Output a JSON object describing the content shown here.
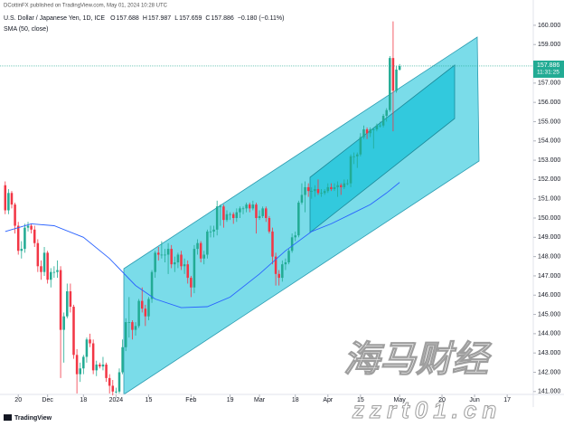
{
  "header": {
    "publisher": "DCottinFX published on TradingView.com, May 01, 2024 10:28 UTC",
    "logo": "TradingView"
  },
  "watermark": {
    "title": "海马财经",
    "url": "zzrt01.cn"
  },
  "chart_data": {
    "type": "candlestick",
    "title": "U.S. Dollar / Japanese Yen, 1D, ICE",
    "legend_labels": [
      "O",
      "H",
      "L",
      "C"
    ],
    "change": "−0.180 (−0.11%)",
    "countdown": "11:31:25",
    "up_color": "#22ab94",
    "down_color": "#f23645",
    "price_line_color": "#22ab94",
    "ylim": [
      140.85,
      161.31
    ],
    "xlim": [
      -1.6,
      162
    ],
    "yticks": [
      {
        "value": 141,
        "label": "141.000"
      },
      {
        "value": 142,
        "label": "142.000"
      },
      {
        "value": 143,
        "label": "143.000"
      },
      {
        "value": 144,
        "label": "144.000"
      },
      {
        "value": 145,
        "label": "145.000"
      },
      {
        "value": 146,
        "label": "146.000"
      },
      {
        "value": 147,
        "label": "147.000"
      },
      {
        "value": 148,
        "label": "148.000"
      },
      {
        "value": 149,
        "label": "149.000"
      },
      {
        "value": 150,
        "label": "150.000"
      },
      {
        "value": 151,
        "label": "151.000"
      },
      {
        "value": 152,
        "label": "152.000"
      },
      {
        "value": 153,
        "label": "153.000"
      },
      {
        "value": 154,
        "label": "154.000"
      },
      {
        "value": 155,
        "label": "155.000"
      },
      {
        "value": 156,
        "label": "156.000"
      },
      {
        "value": 157,
        "label": "157.000"
      },
      {
        "value": 158,
        "label": "158.000"
      },
      {
        "value": 159,
        "label": "159.000"
      },
      {
        "value": 160,
        "label": "160.000"
      }
    ],
    "xticks": [
      {
        "value": 4,
        "label": "20"
      },
      {
        "value": 13,
        "label": "Dec"
      },
      {
        "value": 24,
        "label": "18"
      },
      {
        "value": 34,
        "label": "2024"
      },
      {
        "value": 44,
        "label": "15"
      },
      {
        "value": 57,
        "label": "Feb"
      },
      {
        "value": 69,
        "label": "19"
      },
      {
        "value": 78,
        "label": "Mar"
      },
      {
        "value": 89,
        "label": "18"
      },
      {
        "value": 99,
        "label": "Apr"
      },
      {
        "value": 109,
        "label": "15"
      },
      {
        "value": 121,
        "label": "May"
      },
      {
        "value": 134,
        "label": "20"
      },
      {
        "value": 144,
        "label": "Jun"
      },
      {
        "value": 154,
        "label": "17"
      }
    ],
    "ohlc": [
      [
        151.7,
        151.9,
        150.2,
        150.4
      ],
      [
        150.4,
        151.5,
        150.2,
        151.3
      ],
      [
        151.3,
        151.4,
        150.5,
        150.7
      ],
      [
        150.7,
        150.8,
        149.2,
        149.6
      ],
      [
        149.6,
        149.8,
        148.1,
        148.3
      ],
      [
        148.3,
        148.8,
        147.9,
        148.4
      ],
      [
        148.4,
        149.7,
        148.2,
        149.5
      ],
      [
        149.5,
        149.8,
        149.3,
        149.6
      ],
      [
        149.6,
        149.7,
        149.2,
        149.4
      ],
      [
        149.4,
        149.6,
        148.5,
        148.7
      ],
      [
        148.7,
        148.9,
        147.2,
        147.5
      ],
      [
        147.5,
        147.8,
        146.8,
        147.2
      ],
      [
        147.2,
        148.5,
        147.0,
        148.2
      ],
      [
        148.2,
        148.3,
        146.6,
        146.8
      ],
      [
        146.8,
        147.4,
        146.4,
        147.2
      ],
      [
        147.2,
        147.5,
        146.9,
        147.2
      ],
      [
        147.2,
        147.8,
        146.9,
        147.3
      ],
      [
        147.3,
        147.5,
        141.7,
        144.2
      ],
      [
        144.2,
        145.1,
        142.5,
        144.9
      ],
      [
        144.9,
        146.6,
        144.8,
        146.2
      ],
      [
        146.2,
        146.6,
        145.1,
        145.4
      ],
      [
        145.4,
        145.5,
        142.7,
        142.9
      ],
      [
        142.9,
        143.2,
        140.9,
        141.9
      ],
      [
        141.9,
        142.5,
        141.5,
        142.2
      ],
      [
        142.2,
        142.9,
        141.9,
        142.8
      ],
      [
        142.8,
        143.8,
        142.5,
        143.7
      ],
      [
        143.7,
        144.0,
        143.3,
        143.5
      ],
      [
        143.5,
        143.7,
        141.9,
        142.1
      ],
      [
        142.1,
        142.6,
        141.8,
        142.4
      ],
      [
        142.4,
        142.5,
        142.2,
        142.3
      ],
      [
        142.3,
        142.8,
        142.1,
        142.4
      ],
      [
        142.4,
        142.5,
        141.5,
        141.7
      ],
      [
        141.7,
        141.9,
        140.9,
        141.3
      ],
      [
        141.3,
        141.6,
        140.8,
        141.0
      ],
      [
        141.0,
        141.2,
        140.9,
        141.0
      ],
      [
        141.0,
        142.2,
        140.9,
        142.0
      ],
      [
        142.0,
        143.7,
        141.9,
        143.3
      ],
      [
        143.3,
        144.8,
        143.1,
        144.6
      ],
      [
        144.6,
        145.9,
        143.8,
        144.6
      ],
      [
        144.6,
        144.7,
        143.7,
        144.2
      ],
      [
        144.2,
        144.6,
        143.9,
        144.4
      ],
      [
        144.4,
        145.8,
        144.3,
        145.7
      ],
      [
        145.7,
        146.4,
        145.1,
        145.3
      ],
      [
        145.3,
        145.5,
        144.4,
        144.9
      ],
      [
        144.9,
        145.9,
        144.7,
        145.8
      ],
      [
        145.8,
        147.3,
        145.6,
        147.2
      ],
      [
        147.2,
        148.3,
        146.9,
        148.2
      ],
      [
        148.2,
        148.5,
        147.8,
        148.1
      ],
      [
        148.1,
        148.8,
        147.9,
        148.1
      ],
      [
        148.1,
        148.4,
        147.7,
        148.1
      ],
      [
        148.1,
        148.7,
        147.1,
        148.4
      ],
      [
        148.4,
        148.6,
        147.4,
        147.6
      ],
      [
        147.6,
        148.0,
        147.2,
        147.7
      ],
      [
        147.7,
        148.2,
        147.4,
        148.1
      ],
      [
        148.1,
        148.3,
        147.3,
        147.5
      ],
      [
        147.5,
        147.9,
        147.1,
        147.6
      ],
      [
        147.6,
        147.8,
        146.6,
        146.9
      ],
      [
        146.9,
        147.0,
        145.9,
        146.4
      ],
      [
        146.4,
        148.6,
        146.1,
        148.4
      ],
      [
        148.4,
        148.9,
        148.1,
        148.7
      ],
      [
        148.7,
        148.8,
        147.7,
        147.9
      ],
      [
        147.9,
        148.3,
        147.6,
        148.1
      ],
      [
        148.1,
        149.4,
        147.9,
        149.3
      ],
      [
        149.3,
        149.6,
        149.0,
        149.3
      ],
      [
        149.3,
        149.6,
        149.0,
        149.4
      ],
      [
        149.4,
        150.9,
        149.1,
        150.6
      ],
      [
        150.6,
        150.7,
        149.6,
        150.6
      ],
      [
        150.6,
        150.7,
        149.5,
        149.9
      ],
      [
        149.9,
        150.4,
        149.8,
        150.2
      ],
      [
        150.2,
        150.3,
        149.9,
        150.2
      ],
      [
        150.2,
        150.3,
        149.7,
        150.0
      ],
      [
        150.0,
        150.5,
        149.8,
        150.3
      ],
      [
        150.3,
        150.6,
        150.0,
        150.5
      ],
      [
        150.5,
        150.6,
        150.2,
        150.5
      ],
      [
        150.5,
        150.8,
        150.3,
        150.7
      ],
      [
        150.7,
        150.8,
        150.3,
        150.5
      ],
      [
        150.5,
        150.9,
        150.4,
        150.7
      ],
      [
        150.7,
        150.8,
        149.2,
        150.0
      ],
      [
        150.0,
        150.4,
        149.9,
        150.1
      ],
      [
        150.1,
        150.6,
        150.0,
        150.5
      ],
      [
        150.5,
        150.6,
        149.8,
        150.0
      ],
      [
        150.0,
        150.1,
        149.2,
        149.3
      ],
      [
        149.3,
        149.5,
        147.6,
        148.0
      ],
      [
        148.0,
        148.2,
        146.5,
        147.1
      ],
      [
        147.1,
        147.3,
        146.5,
        146.9
      ],
      [
        146.9,
        147.8,
        146.7,
        147.6
      ],
      [
        147.6,
        147.9,
        147.3,
        147.7
      ],
      [
        147.7,
        148.4,
        147.6,
        148.3
      ],
      [
        148.3,
        149.2,
        148.2,
        149.0
      ],
      [
        149.0,
        149.3,
        148.8,
        149.1
      ],
      [
        149.1,
        150.9,
        149.0,
        150.8
      ],
      [
        150.8,
        151.8,
        150.7,
        151.2
      ],
      [
        151.2,
        151.9,
        150.3,
        151.6
      ],
      [
        151.6,
        151.8,
        151.1,
        151.4
      ],
      [
        151.4,
        151.6,
        151.0,
        151.4
      ],
      [
        151.4,
        151.7,
        151.1,
        151.5
      ],
      [
        151.5,
        152.0,
        151.2,
        151.3
      ],
      [
        151.3,
        151.5,
        151.1,
        151.3
      ],
      [
        151.3,
        151.5,
        151.2,
        151.4
      ],
      [
        151.4,
        151.8,
        151.3,
        151.6
      ],
      [
        151.6,
        151.8,
        151.4,
        151.5
      ],
      [
        151.5,
        151.8,
        151.4,
        151.6
      ],
      [
        151.6,
        151.9,
        151.1,
        151.7
      ],
      [
        151.7,
        151.8,
        151.2,
        151.6
      ],
      [
        151.6,
        152.0,
        151.5,
        151.8
      ],
      [
        151.8,
        152.0,
        151.7,
        151.8
      ],
      [
        151.8,
        153.3,
        151.6,
        153.2
      ],
      [
        153.2,
        153.4,
        152.8,
        153.2
      ],
      [
        153.2,
        153.4,
        152.6,
        153.3
      ],
      [
        153.3,
        154.4,
        153.2,
        154.2
      ],
      [
        154.2,
        154.8,
        154.1,
        154.6
      ],
      [
        154.6,
        154.7,
        154.1,
        154.4
      ],
      [
        154.4,
        154.7,
        154.2,
        154.6
      ],
      [
        154.6,
        154.7,
        153.6,
        154.6
      ],
      [
        154.6,
        154.9,
        154.5,
        154.8
      ],
      [
        154.8,
        155.0,
        154.7,
        154.8
      ],
      [
        154.8,
        155.4,
        154.7,
        155.3
      ],
      [
        155.3,
        155.7,
        155.0,
        155.6
      ],
      [
        155.6,
        158.4,
        155.5,
        158.3
      ],
      [
        158.3,
        160.2,
        154.5,
        156.6
      ],
      [
        156.6,
        157.9,
        156.5,
        157.7
      ],
      [
        157.688,
        157.987,
        157.659,
        157.886
      ]
    ],
    "series": [
      {
        "name": "SMA (50, close)",
        "color": "#2962ff",
        "x": [
          0,
          8,
          15,
          24,
          32,
          40,
          46,
          54,
          62,
          69,
          78,
          86,
          94,
          100,
          106,
          112,
          117,
          121
        ],
        "values": [
          149.3,
          149.7,
          149.6,
          149.0,
          147.9,
          146.5,
          145.8,
          145.35,
          145.4,
          145.9,
          147.1,
          148.3,
          149.3,
          149.7,
          150.2,
          150.7,
          151.3,
          151.85
        ]
      }
    ]
  }
}
